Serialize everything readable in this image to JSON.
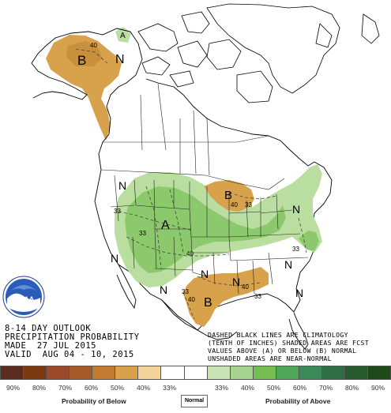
{
  "outlook": {
    "line1": "8-14 DAY OUTLOOK",
    "line2": "PRECIPITATION PROBABILITY",
    "line3": "MADE  27 JUL 2015",
    "line4": "VALID  AUG 04 - 10, 2015"
  },
  "note": {
    "line1": "DASHED BLACK LINES ARE CLIMATOLOGY",
    "line2": "(TENTH OF INCHES) SHADED AREAS ARE FCST",
    "line3": "VALUES ABOVE (A) OR BELOW (B) NORMAL",
    "line4": "UNSHADED AREAS ARE NEAR-NORMAL"
  },
  "logo": {
    "text": "NOAA"
  },
  "map_labels": {
    "alaska_below": "B",
    "alaska_normal": "N",
    "alaska_above": "A",
    "alaska_contour": "40",
    "canada_normal": "N",
    "great_lakes_below": "B",
    "great_lakes_40": "40",
    "great_lakes_33": "33",
    "plains_above": "A",
    "plains_33": "33",
    "plains_40": "40",
    "plains_33b": "33",
    "east_normal": "N",
    "east_33": "33",
    "west_normal": "N",
    "texas_below": "B",
    "texas_33": "33",
    "texas_40": "40",
    "gulf_40": "40",
    "gulf_33": "33",
    "southwest_normal": "N",
    "southeast_normal": "N",
    "southeast_normal2": "N",
    "mexico_normal": "N",
    "central_normal": "N"
  },
  "legend": {
    "colors": [
      "#5a2c20",
      "#7a3a10",
      "#9a4a2a",
      "#a55a2a",
      "#c27a30",
      "#d8a24c",
      "#f2d49a",
      "#ffffff",
      "#ffffff",
      "#c8e4b4",
      "#a6d48e",
      "#74bf4f",
      "#4fa85a",
      "#3c8a5a",
      "#2f6e44",
      "#285a2e",
      "#1e4a1a"
    ],
    "ticks": [
      "90%",
      "80%",
      "70%",
      "60%",
      "50%",
      "40%",
      "33%",
      "",
      "33%",
      "40%",
      "50%",
      "60%",
      "70%",
      "80%",
      "90%"
    ],
    "below_caption": "Probability of Below",
    "normal_caption": "Normal",
    "above_caption": "Probability of Above"
  },
  "colors": {
    "below_light": "#d8a24c",
    "above_light": "#b9dea0",
    "above_mid": "#8cc96c"
  }
}
